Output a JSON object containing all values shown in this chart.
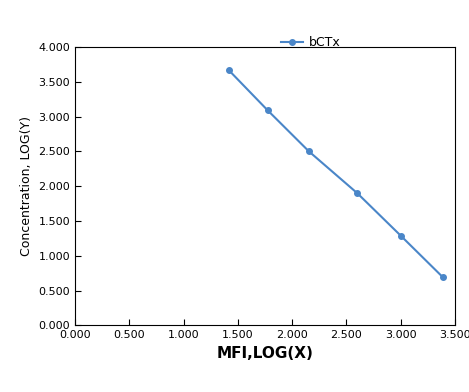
{
  "x": [
    1.415,
    1.775,
    2.155,
    2.6,
    3.0,
    3.39
  ],
  "y": [
    3.67,
    3.09,
    2.5,
    1.9,
    1.29,
    0.69
  ],
  "line_color": "#4a86c8",
  "marker": "o",
  "marker_size": 4,
  "line_width": 1.5,
  "legend_label": "bCTx",
  "xlabel": "MFI,LOG(X)",
  "ylabel": "Concentration, LOG(Y)",
  "xlim": [
    0.0,
    3.5
  ],
  "ylim": [
    0.0,
    4.0
  ],
  "xticks": [
    0.0,
    0.5,
    1.0,
    1.5,
    2.0,
    2.5,
    3.0,
    3.5
  ],
  "yticks": [
    0.0,
    0.5,
    1.0,
    1.5,
    2.0,
    2.5,
    3.0,
    3.5,
    4.0
  ],
  "xlabel_fontsize": 11,
  "ylabel_fontsize": 9,
  "legend_fontsize": 9,
  "tick_fontsize": 8,
  "background_color": "#ffffff"
}
